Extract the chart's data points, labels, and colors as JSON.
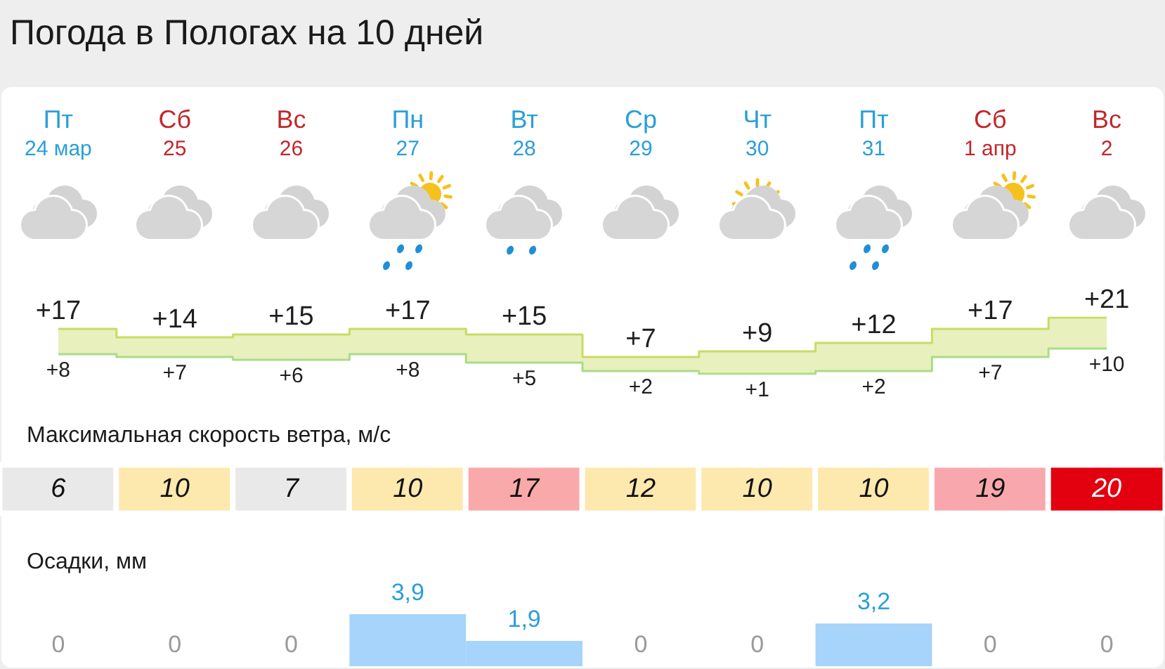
{
  "chart_data": [
    {
      "type": "step",
      "title": "Погода в Пологах на 10 дней",
      "categories": [
        "Пт\n24 мар",
        "Сб\n25",
        "Вс\n26",
        "Пн\n27",
        "Вт\n28",
        "Ср\n29",
        "Чт\n30",
        "Пт\n31",
        "Сб\n1 апр",
        "Вс\n2"
      ],
      "series": [
        {
          "color": "#c8dc64",
          "values": [
            17,
            14,
            15,
            17,
            15,
            7,
            9,
            12,
            17,
            21
          ],
          "value_labels": [
            "+17",
            "+14",
            "+15",
            "+17",
            "+15",
            "+7",
            "+9",
            "+12",
            "+17",
            "+21"
          ]
        },
        {
          "color": "#a9dc86",
          "values": [
            8,
            7,
            6,
            8,
            5,
            2,
            1,
            2,
            7,
            10
          ],
          "value_labels": [
            "+8",
            "+7",
            "+6",
            "+8",
            "+5",
            "+2",
            "+1",
            "+2",
            "+7",
            "+10"
          ]
        }
      ],
      "marker": "none",
      "tick_labels": "x"
    },
    {
      "type": "heatmap",
      "title": "Максимальная скорость ветра, м/с",
      "categories": [
        null,
        null,
        null,
        null,
        null,
        null,
        null,
        null,
        null,
        null
      ],
      "y_categories": [
        null
      ],
      "cells": [
        [
          6,
          10,
          7,
          10,
          17,
          12,
          10,
          10,
          19,
          20
        ]
      ],
      "colors": [
        "#e9e9e9",
        "#fde8ae",
        "#e9e9e9",
        "#fde8ae",
        "#f9a9a9",
        "#fde8ae",
        "#fde8ae",
        "#fde8ae",
        "#f8a8ac",
        "#e3000f"
      ],
      "data_labels": true,
      "tick_labels": false
    },
    {
      "type": "bar",
      "title": "Осадки, мм",
      "categories": [
        null,
        null,
        null,
        null,
        null,
        null,
        null,
        null,
        null,
        null
      ],
      "values": [
        0,
        0,
        0,
        3.9,
        1.9,
        0,
        0,
        3.2,
        0,
        0
      ],
      "value_labels": [
        "0",
        "0",
        "0",
        "3,9",
        "1,9",
        "0",
        "0",
        "3,2",
        "0",
        "0"
      ],
      "color": "#a6d4fa",
      "tick_labels": false
    }
  ]
}
